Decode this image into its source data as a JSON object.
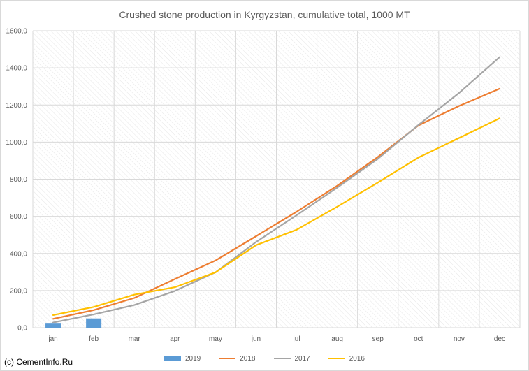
{
  "chart_data": {
    "type": "line",
    "title": "Crushed stone production in Kyrgyzstan, cumulative total, 1000 MT",
    "categories": [
      "jan",
      "feb",
      "mar",
      "apr",
      "may",
      "jun",
      "jul",
      "aug",
      "sep",
      "oct",
      "nov",
      "dec"
    ],
    "ylim": [
      0,
      1600
    ],
    "yticks": [
      "0,0",
      "200,0",
      "400,0",
      "600,0",
      "800,0",
      "1000,0",
      "1200,0",
      "1400,0",
      "1600,0"
    ],
    "ytick_values": [
      0,
      200,
      400,
      600,
      800,
      1000,
      1200,
      1400,
      1600
    ],
    "grid": true,
    "legend_position": "bottom",
    "bar_series": {
      "name": "2019",
      "color": "#5b9bd5",
      "values": [
        22,
        50
      ]
    },
    "series": [
      {
        "name": "2018",
        "color": "#ed7d31",
        "values": [
          48,
          95,
          160,
          262,
          362,
          493,
          625,
          765,
          920,
          1090,
          1195,
          1288
        ]
      },
      {
        "name": "2017",
        "color": "#a5a5a5",
        "values": [
          28,
          72,
          122,
          198,
          298,
          462,
          606,
          755,
          910,
          1092,
          1265,
          1458
        ]
      },
      {
        "name": "2016",
        "color": "#ffc000",
        "values": [
          68,
          112,
          178,
          218,
          298,
          445,
          528,
          652,
          782,
          917,
          1022,
          1128
        ]
      }
    ]
  },
  "legend": {
    "items": [
      {
        "label": "2019",
        "kind": "bar",
        "color": "#5b9bd5"
      },
      {
        "label": "2018",
        "kind": "line",
        "color": "#ed7d31"
      },
      {
        "label": "2017",
        "kind": "line",
        "color": "#a5a5a5"
      },
      {
        "label": "2016",
        "kind": "line",
        "color": "#ffc000"
      }
    ]
  },
  "credit": "(c) CementInfo.Ru"
}
